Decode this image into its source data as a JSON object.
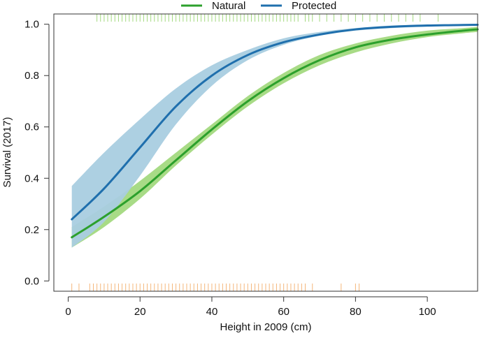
{
  "chart_data": {
    "type": "line",
    "title": "",
    "xlabel": "Height in 2009 (cm)",
    "ylabel": "Survival (2017)",
    "xlim": [
      -4,
      114
    ],
    "ylim": [
      -0.04,
      1.04
    ],
    "x_ticks": [
      0,
      20,
      40,
      60,
      80,
      100
    ],
    "x_tick_labels": [
      "0",
      "20",
      "40",
      "60",
      "80",
      "100"
    ],
    "y_ticks": [
      0.0,
      0.2,
      0.4,
      0.6,
      0.8,
      1.0
    ],
    "y_tick_labels": [
      "0.0",
      "0.2",
      "0.4",
      "0.6",
      "0.8",
      "1.0"
    ],
    "grid": false,
    "legend_position": "top-center",
    "series": [
      {
        "name": "Natural",
        "color": "#2ca02c",
        "band_color": "#a3d97f",
        "x": [
          1,
          10,
          20,
          30,
          40,
          50,
          60,
          70,
          80,
          90,
          100,
          110,
          114
        ],
        "values": [
          0.17,
          0.25,
          0.35,
          0.47,
          0.59,
          0.7,
          0.79,
          0.86,
          0.91,
          0.94,
          0.96,
          0.975,
          0.98
        ],
        "lower": [
          0.13,
          0.21,
          0.32,
          0.45,
          0.57,
          0.68,
          0.77,
          0.84,
          0.89,
          0.925,
          0.95,
          0.965,
          0.97
        ],
        "upper": [
          0.21,
          0.29,
          0.39,
          0.5,
          0.61,
          0.72,
          0.81,
          0.88,
          0.925,
          0.955,
          0.975,
          0.985,
          0.99
        ]
      },
      {
        "name": "Protected",
        "color": "#1f6fad",
        "band_color": "#a9cde0",
        "x": [
          1,
          10,
          20,
          30,
          40,
          50,
          60,
          70,
          80,
          90,
          100,
          110,
          114
        ],
        "values": [
          0.24,
          0.36,
          0.52,
          0.68,
          0.8,
          0.88,
          0.93,
          0.96,
          0.98,
          0.99,
          0.995,
          0.997,
          0.998
        ],
        "lower": [
          0.13,
          0.23,
          0.41,
          0.61,
          0.76,
          0.86,
          0.92,
          0.955,
          0.975,
          0.985,
          0.99,
          0.995,
          0.996
        ],
        "upper": [
          0.37,
          0.5,
          0.63,
          0.75,
          0.84,
          0.9,
          0.945,
          0.97,
          0.985,
          0.995,
          0.998,
          0.999,
          1.0
        ]
      }
    ],
    "rug_top": {
      "y": 1.025,
      "color": "#a3d97f",
      "x": [
        8,
        9,
        10,
        11,
        12,
        13,
        14,
        15,
        16,
        17,
        18,
        19,
        20,
        21,
        22,
        23,
        24,
        25,
        26,
        27,
        28,
        29,
        30,
        31,
        32,
        33,
        34,
        35,
        36,
        37,
        38,
        39,
        40,
        41,
        42,
        43,
        44,
        45,
        46,
        47,
        48,
        49,
        50,
        51,
        52,
        53,
        54,
        55,
        56,
        57,
        58,
        59,
        60,
        61,
        62,
        63,
        64,
        66,
        67,
        68,
        70,
        72,
        74,
        76,
        78,
        80,
        82,
        84,
        86,
        88,
        90,
        92,
        94,
        96,
        98,
        103
      ]
    },
    "rug_bottom": {
      "y": -0.025,
      "color": "#f4b67a",
      "x": [
        1,
        3,
        6,
        7,
        8,
        9,
        10,
        11,
        12,
        13,
        14,
        15,
        16,
        17,
        18,
        19,
        20,
        21,
        22,
        23,
        24,
        25,
        26,
        27,
        28,
        29,
        30,
        31,
        32,
        33,
        34,
        35,
        36,
        37,
        38,
        39,
        40,
        41,
        42,
        43,
        44,
        45,
        46,
        47,
        48,
        49,
        50,
        51,
        52,
        53,
        54,
        55,
        56,
        57,
        58,
        59,
        60,
        61,
        62,
        63,
        64,
        65,
        66,
        68,
        76,
        80,
        81
      ]
    }
  }
}
